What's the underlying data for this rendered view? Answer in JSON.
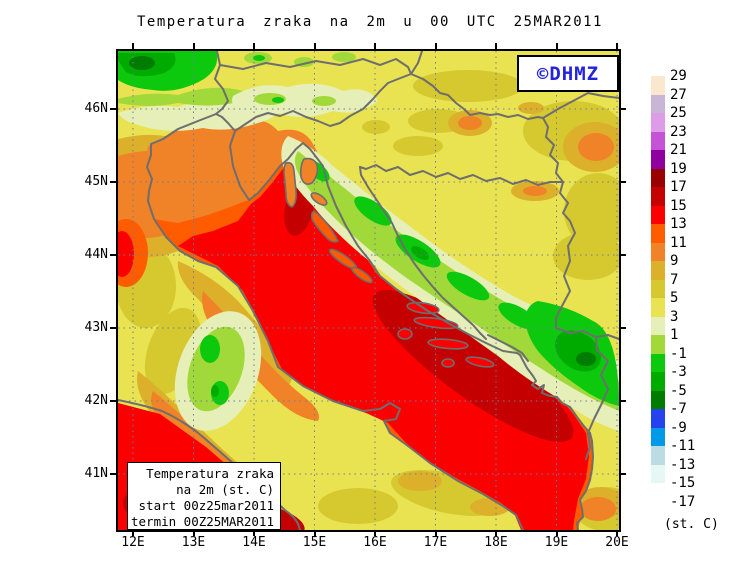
{
  "title": "Temperatura zraka na 2m u 00 UTC 25MAR2011",
  "branding": {
    "label": "©DHMZ",
    "color": "#2323dd"
  },
  "info_box": {
    "lines": [
      "Temperatura zraka",
      "na 2m (st. C)",
      "start 00z25mar2011",
      "termin 00Z25MAR2011"
    ]
  },
  "axes": {
    "lat_labels": [
      "46N",
      "45N",
      "44N",
      "43N",
      "42N",
      "41N"
    ],
    "lon_labels": [
      "12E",
      "13E",
      "14E",
      "15E",
      "16E",
      "17E",
      "18E",
      "19E",
      "20E"
    ]
  },
  "colorbar": {
    "unit": "(st. C)",
    "labels": [
      "29",
      "27",
      "25",
      "23",
      "21",
      "19",
      "17",
      "15",
      "13",
      "11",
      "9",
      "7",
      "5",
      "3",
      "1",
      "-1",
      "-3",
      "-5",
      "-7",
      "-9",
      "-11",
      "-13",
      "-15",
      "-17"
    ],
    "colors": [
      "#fbe7cd",
      "#c9b5d6",
      "#dd9ce6",
      "#c653d6",
      "#8e00a0",
      "#9b0000",
      "#c40000",
      "#fb0000",
      "#ff5c00",
      "#f08228",
      "#ddb02b",
      "#d5c92f",
      "#e9e351",
      "#e6efb7",
      "#a0d939",
      "#0dc90d",
      "#00ab00",
      "#007c00",
      "#2443ee",
      "#009ae8",
      "#bcdce4",
      "#e6f7f4",
      "#ffffff"
    ]
  },
  "palette": {
    "yellow": "#e9e351",
    "khaki": "#d5c92f",
    "goldenrod": "#ddb02b",
    "orange": "#f08228",
    "orangered": "#ff5c00",
    "red": "#fb0000",
    "darkred": "#c40000",
    "pale": "#e6efb7",
    "yellowgreen": "#a0d939",
    "green": "#0dc90d",
    "midgreen": "#00ab00",
    "darkgreen": "#007c00",
    "border": "#6e6e6e",
    "grid": "#6f7b9d"
  }
}
